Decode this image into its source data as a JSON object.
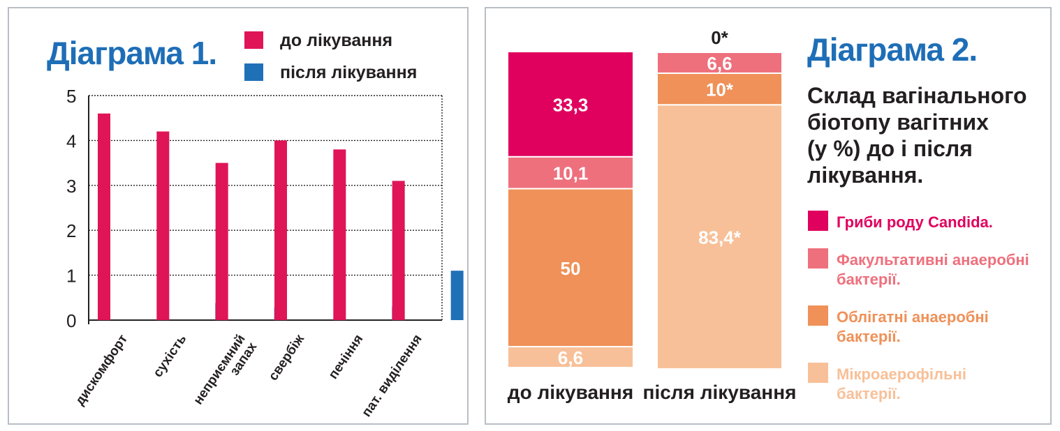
{
  "colors": {
    "candida": "#e0005e",
    "facultative": "#ee707d",
    "obligate": "#ef9158",
    "microaerophilic": "#f8c098",
    "before": "#df1557",
    "after": "#2070b8",
    "title": "#1e6eb7",
    "text": "#231f20",
    "frame": "#b9bec4"
  },
  "chart_data": [
    {
      "type": "bar",
      "title": "Діаграма 1.",
      "categories": [
        "дискомфорт",
        "сухість",
        "неприємний запах",
        "свербіж",
        "печіння",
        "пат. виділення"
      ],
      "category_lines": [
        [
          "дискомфорт"
        ],
        [
          "сухість"
        ],
        [
          "неприємний",
          "запах"
        ],
        [
          "свербіж"
        ],
        [
          "печіння"
        ],
        [
          "пат. виділення"
        ]
      ],
      "series": [
        {
          "name": "до лікування",
          "color": "#df1557",
          "values": [
            4.6,
            4.2,
            3.5,
            4.0,
            3.8,
            3.1
          ]
        },
        {
          "name": "після лікування",
          "color": "#2070b8",
          "values": [
            0,
            0.38,
            0.28,
            0,
            0.3,
            1.1
          ]
        }
      ],
      "ylim": [
        0,
        5
      ],
      "yticks": [
        "0",
        "1",
        "2",
        "3",
        "4",
        "5"
      ],
      "grid": true,
      "legend_position": "top-right"
    },
    {
      "type": "bar",
      "stacked": true,
      "title": "Діаграма 2.",
      "subtitle": "Склад вагінального біотопу вагітних (у %) до і після лікування.",
      "subtitle_lines": [
        "Склад вагінального",
        "біотопу вагітних",
        "(у %) до і після",
        "лікування."
      ],
      "categories": [
        "до лікування",
        "після лікування"
      ],
      "series": [
        {
          "name": "Гриби роду Candida.",
          "name_lines": [
            "Гриби роду Candida."
          ],
          "color": "#e0005e",
          "values": [
            33.3,
            0
          ],
          "labels": [
            "33,3",
            "0*"
          ]
        },
        {
          "name": "Факультативні анаеробні бактерії.",
          "name_lines": [
            "Факультативні анаеробні",
            "бактерії."
          ],
          "color": "#ee707d",
          "values": [
            10.1,
            6.6
          ],
          "labels": [
            "10,1",
            "6,6"
          ]
        },
        {
          "name": "Облігатні анаеробні бактерії.",
          "name_lines": [
            "Облігатні анаеробні",
            "бактерії."
          ],
          "color": "#ef9158",
          "values": [
            50,
            10
          ],
          "labels": [
            "50",
            "10*"
          ]
        },
        {
          "name": "Мікроаерофільні бактерії.",
          "name_lines": [
            "Мікроаерофільні",
            "бактерії."
          ],
          "color": "#f8c098",
          "values": [
            6.6,
            83.4
          ],
          "labels": [
            "6,6",
            "83,4*"
          ]
        }
      ],
      "ylim": [
        0,
        100
      ],
      "legend_position": "right"
    }
  ]
}
